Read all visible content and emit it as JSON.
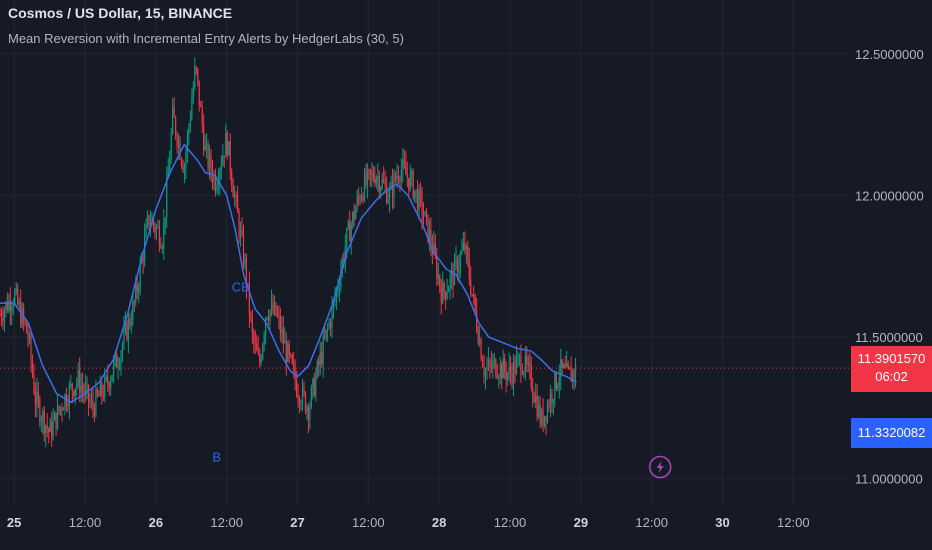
{
  "header": {
    "symbol_line": "Cosmos / US Dollar, 15, BINANCE",
    "study_line": "Mean Reversion with Incremental Entry Alerts by HedgerLabs (30, 5)"
  },
  "price_scale": {
    "labels": [
      "12.5000000",
      "12.0000000",
      "11.5000000",
      "11.0000000"
    ],
    "last_price": "11.3901570",
    "countdown": "06:02",
    "ma_value": "11.3320082"
  },
  "time_axis": {
    "labels": [
      "25",
      "12:00",
      "26",
      "12:00",
      "27",
      "12:00",
      "28",
      "12:00",
      "29",
      "12:00",
      "30",
      "12:00"
    ],
    "bold": [
      "25",
      "26",
      "27",
      "28",
      "29",
      "30"
    ]
  },
  "signals": [
    {
      "label": "CB",
      "x": 26.6,
      "y": 11.66
    },
    {
      "label": "B",
      "x": 26.43,
      "y": 11.06
    }
  ],
  "colors": {
    "background": "#161a25",
    "grid": "#232632",
    "up": "#089981",
    "down": "#f23645",
    "ma_line": "#3c6fe8",
    "signal": "#2962ff",
    "price_line": "#f23645",
    "alert_icon": "#ab47bc"
  },
  "chart_data": {
    "type": "candlestick",
    "x_unit": "days (day-of-month)",
    "xlim": [
      24.9,
      30.9
    ],
    "ylim": [
      10.9,
      12.69
    ],
    "y_ticks": [
      11.0,
      11.5,
      12.0,
      12.5
    ],
    "grid": true,
    "last_price": 11.390157,
    "ma_last": 11.3320082,
    "price_path": [
      [
        24.9,
        11.58
      ],
      [
        25.0,
        11.65
      ],
      [
        25.1,
        11.5
      ],
      [
        25.15,
        11.28
      ],
      [
        25.25,
        11.16
      ],
      [
        25.35,
        11.28
      ],
      [
        25.45,
        11.35
      ],
      [
        25.55,
        11.25
      ],
      [
        25.65,
        11.33
      ],
      [
        25.75,
        11.45
      ],
      [
        25.85,
        11.62
      ],
      [
        25.95,
        11.92
      ],
      [
        26.05,
        11.85
      ],
      [
        26.12,
        12.28
      ],
      [
        26.2,
        12.1
      ],
      [
        26.28,
        12.45
      ],
      [
        26.35,
        12.15
      ],
      [
        26.42,
        12.05
      ],
      [
        26.5,
        12.2
      ],
      [
        26.56,
        11.98
      ],
      [
        26.63,
        11.75
      ],
      [
        26.68,
        11.5
      ],
      [
        26.73,
        11.4
      ],
      [
        26.78,
        11.6
      ],
      [
        26.85,
        11.58
      ],
      [
        26.92,
        11.45
      ],
      [
        27.0,
        11.32
      ],
      [
        27.08,
        11.25
      ],
      [
        27.16,
        11.42
      ],
      [
        27.25,
        11.6
      ],
      [
        27.35,
        11.85
      ],
      [
        27.45,
        12.02
      ],
      [
        27.55,
        12.08
      ],
      [
        27.65,
        12.0
      ],
      [
        27.72,
        12.1
      ],
      [
        27.8,
        12.05
      ],
      [
        27.88,
        11.95
      ],
      [
        27.95,
        11.82
      ],
      [
        28.02,
        11.65
      ],
      [
        28.1,
        11.72
      ],
      [
        28.18,
        11.82
      ],
      [
        28.25,
        11.6
      ],
      [
        28.32,
        11.38
      ],
      [
        28.4,
        11.4
      ],
      [
        28.5,
        11.37
      ],
      [
        28.58,
        11.42
      ],
      [
        28.65,
        11.35
      ],
      [
        28.72,
        11.2
      ],
      [
        28.78,
        11.28
      ],
      [
        28.85,
        11.38
      ],
      [
        28.92,
        11.36
      ],
      [
        28.97,
        11.39
      ]
    ],
    "ma_path": [
      [
        24.9,
        11.62
      ],
      [
        25.0,
        11.62
      ],
      [
        25.1,
        11.55
      ],
      [
        25.2,
        11.4
      ],
      [
        25.3,
        11.3
      ],
      [
        25.4,
        11.27
      ],
      [
        25.5,
        11.3
      ],
      [
        25.6,
        11.34
      ],
      [
        25.7,
        11.42
      ],
      [
        25.8,
        11.58
      ],
      [
        25.9,
        11.78
      ],
      [
        26.0,
        11.95
      ],
      [
        26.1,
        12.08
      ],
      [
        26.2,
        12.18
      ],
      [
        26.3,
        12.12
      ],
      [
        26.35,
        12.08
      ],
      [
        26.42,
        12.07
      ],
      [
        26.5,
        12.0
      ],
      [
        26.56,
        11.88
      ],
      [
        26.62,
        11.72
      ],
      [
        26.7,
        11.6
      ],
      [
        26.78,
        11.55
      ],
      [
        26.87,
        11.45
      ],
      [
        26.95,
        11.38
      ],
      [
        27.0,
        11.36
      ],
      [
        27.08,
        11.4
      ],
      [
        27.16,
        11.5
      ],
      [
        27.25,
        11.62
      ],
      [
        27.35,
        11.8
      ],
      [
        27.45,
        11.92
      ],
      [
        27.55,
        11.98
      ],
      [
        27.63,
        12.02
      ],
      [
        27.7,
        12.04
      ],
      [
        27.78,
        12.0
      ],
      [
        27.88,
        11.9
      ],
      [
        27.96,
        11.8
      ],
      [
        28.05,
        11.74
      ],
      [
        28.12,
        11.72
      ],
      [
        28.2,
        11.65
      ],
      [
        28.28,
        11.55
      ],
      [
        28.35,
        11.5
      ],
      [
        28.45,
        11.48
      ],
      [
        28.55,
        11.46
      ],
      [
        28.65,
        11.45
      ],
      [
        28.72,
        11.42
      ],
      [
        28.8,
        11.38
      ],
      [
        28.9,
        11.36
      ],
      [
        28.97,
        11.34
      ]
    ]
  }
}
